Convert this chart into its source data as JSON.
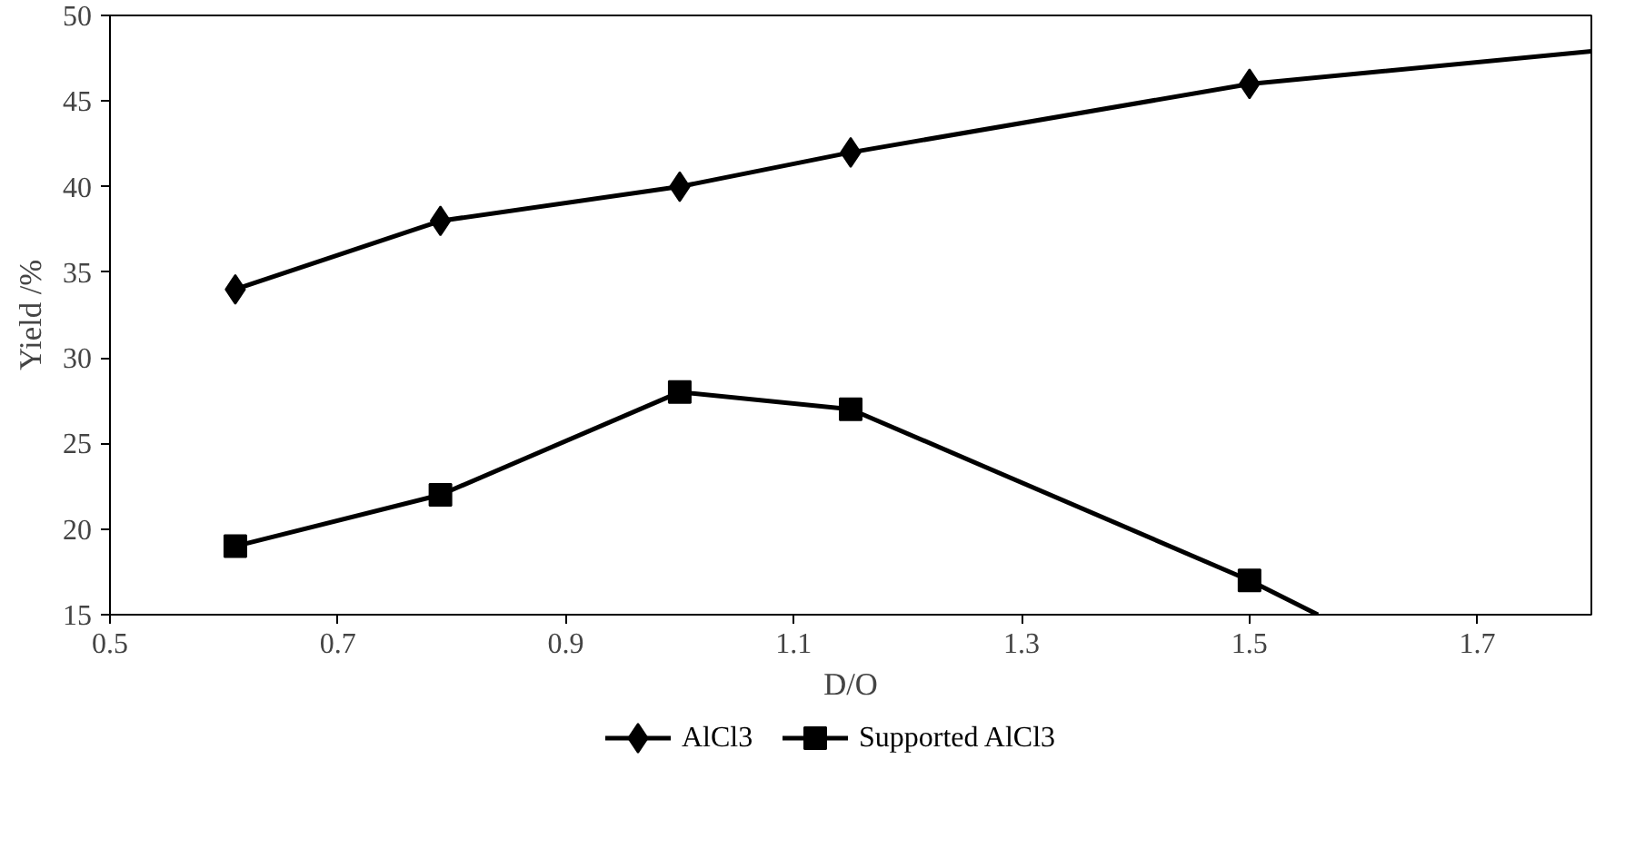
{
  "chart_data": {
    "type": "scatter",
    "xlabel": "D/O",
    "ylabel": "Yield /%",
    "xlim": [
      0.5,
      1.8
    ],
    "xticks": [
      0.5,
      0.7,
      0.9,
      1.1,
      1.3,
      1.5,
      1.7
    ],
    "ylim": [
      15,
      50
    ],
    "yticks": [
      15,
      20,
      25,
      30,
      35,
      40,
      45,
      50
    ],
    "grid": false,
    "legend": "bottom",
    "series": [
      {
        "type": "line",
        "marker": "none",
        "color": "#000000",
        "x": [
          0.61,
          0.79,
          1.0,
          1.15,
          1.5,
          1.8
        ],
        "values": [
          34,
          38,
          40,
          42,
          46,
          47.9
        ]
      },
      {
        "type": "line",
        "marker": "none",
        "color": "#000000",
        "x": [
          0.61,
          0.79,
          1.0,
          1.15,
          1.5,
          1.56
        ],
        "values": [
          19,
          22,
          28,
          27,
          17,
          15
        ]
      },
      {
        "name": "AlCl3",
        "marker": "diamond",
        "color": "#000000",
        "x": [
          0.61,
          0.79,
          1.0,
          1.15,
          1.5
        ],
        "values": [
          34,
          38,
          40,
          42,
          46
        ]
      },
      {
        "name": "Supported AlCl3",
        "marker": "square",
        "color": "#000000",
        "x": [
          0.61,
          0.79,
          1.0,
          1.15,
          1.5
        ],
        "values": [
          19,
          22,
          28,
          27,
          17
        ]
      }
    ]
  }
}
